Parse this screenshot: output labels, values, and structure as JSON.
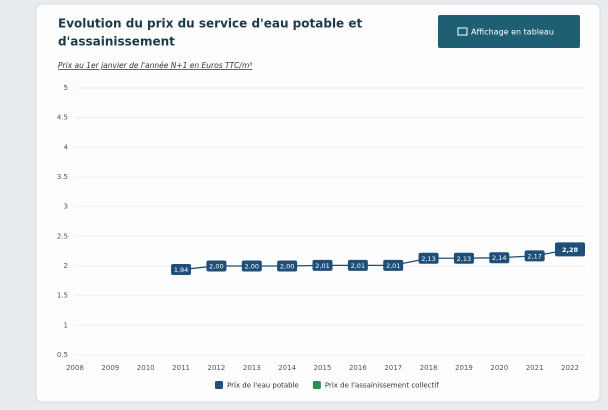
{
  "header": {
    "title_line1": "Evolution du prix du service d'eau potable et",
    "title_line2": "d'assainissement",
    "subtitle": "Prix au 1er janvier de l'année N+1 en Euros TTC/m³",
    "button": "Affichage en tableau"
  },
  "chart_data": {
    "type": "line",
    "categories": [
      "2008",
      "2009",
      "2010",
      "2011",
      "2012",
      "2013",
      "2014",
      "2015",
      "2016",
      "2017",
      "2018",
      "2019",
      "2020",
      "2021",
      "2022"
    ],
    "series": [
      {
        "name": "Prix de l'eau potable",
        "color": "#1f4e79",
        "values": [
          null,
          null,
          null,
          1.94,
          2.0,
          2.0,
          2.0,
          2.01,
          2.01,
          2.01,
          2.13,
          2.13,
          2.14,
          2.17,
          2.28
        ],
        "value_labels": [
          null,
          null,
          null,
          "1,94",
          "2,00",
          "2,00",
          "2,00",
          "2,01",
          "2,01",
          "2,01",
          "2,13",
          "2,13",
          "2,14",
          "2,17",
          "2,28"
        ]
      },
      {
        "name": "Prix de l'assainissement collectif",
        "color": "#2e8b57",
        "values": [
          null,
          null,
          null,
          null,
          null,
          null,
          null,
          null,
          null,
          null,
          null,
          null,
          null,
          null,
          null
        ]
      }
    ],
    "ylim": [
      0.5,
      5
    ],
    "yticks": [
      0.5,
      1,
      1.5,
      2,
      2.5,
      3,
      3.5,
      4,
      4.5,
      5
    ],
    "grid": true
  }
}
